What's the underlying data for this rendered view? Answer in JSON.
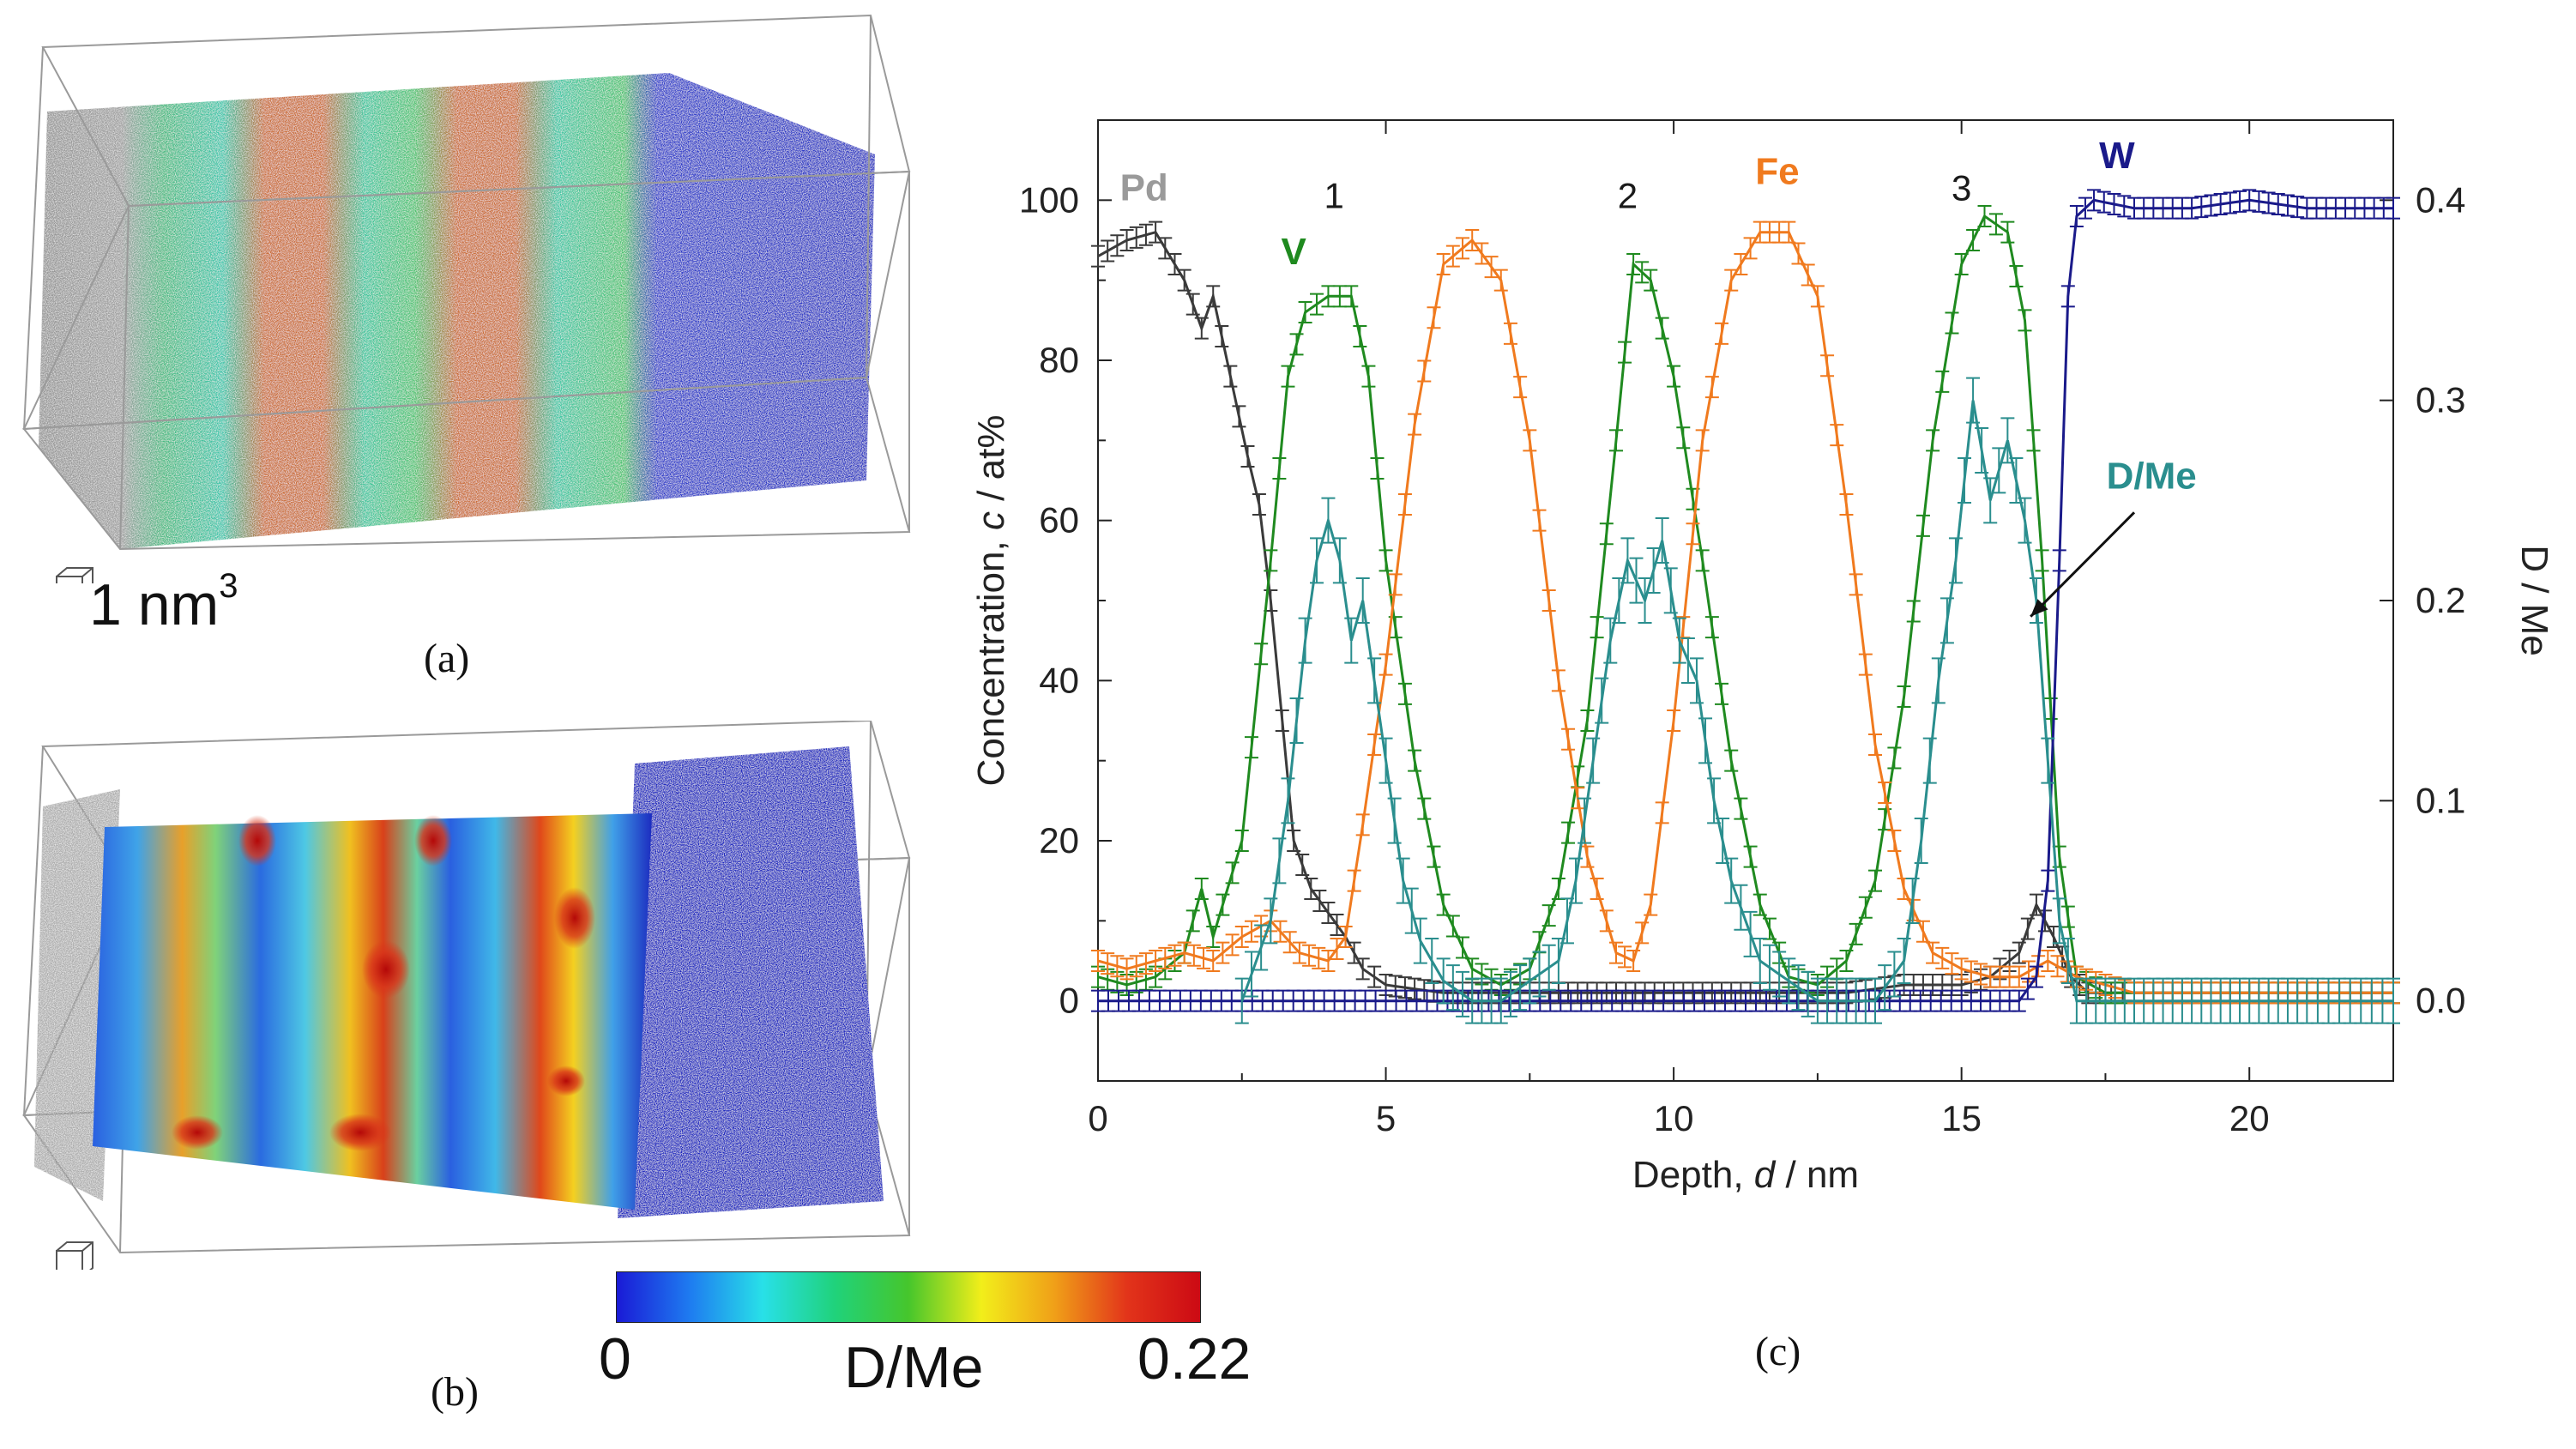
{
  "panels": {
    "a": {
      "caption": "(a)",
      "scale_label": "1 nm",
      "scale_exponent": "3"
    },
    "b": {
      "caption": "(b)"
    },
    "c": {
      "caption": "(c)"
    }
  },
  "colorbar": {
    "min_label": "0",
    "max_label": "0.22",
    "title": "D/Me",
    "stops": [
      "#1a1ad6",
      "#1e7bf0",
      "#28e0e8",
      "#20d27a",
      "#46c62c",
      "#f2ee1a",
      "#f0a018",
      "#e2341a",
      "#cc0a14"
    ]
  },
  "chart_data": {
    "type": "line",
    "xlabel_prefix": "Depth, ",
    "xlabel_var": "d",
    "xlabel_suffix": " / nm",
    "ylabel_prefix": "Concentration, ",
    "ylabel_var": "c",
    "ylabel_suffix": " / at%",
    "y2label": "D / Me",
    "xlim": [
      0,
      22.5
    ],
    "ylim": [
      -10,
      110
    ],
    "y2lim": [
      -0.04,
      0.44
    ],
    "xticks": [
      0,
      5,
      10,
      15,
      20
    ],
    "xtick_labels": [
      "0",
      "5",
      "10",
      "15",
      "20"
    ],
    "yticks": [
      0,
      20,
      40,
      60,
      80,
      100
    ],
    "ytick_labels": [
      "0",
      "20",
      "40",
      "60",
      "80",
      "100"
    ],
    "y2ticks": [
      0.0,
      0.1,
      0.2,
      0.3,
      0.4
    ],
    "y2tick_labels": [
      "0.0",
      "0.1",
      "0.2",
      "0.3",
      "0.4"
    ],
    "series": [
      {
        "name": "Pd",
        "axis": "left",
        "color": "#3a3a3a",
        "label_color": "#9a9a9a",
        "x": [
          0,
          0.5,
          1.0,
          1.5,
          1.8,
          2.0,
          2.3,
          2.6,
          2.8,
          3.0,
          3.2,
          3.4,
          3.7,
          4.0,
          4.3,
          4.6,
          5,
          6,
          7,
          8,
          9,
          10,
          11,
          12,
          13,
          14,
          15,
          15.5,
          16.0,
          16.3,
          16.6,
          16.9,
          17.2,
          18,
          19,
          20,
          21,
          22.5
        ],
        "y": [
          93,
          95,
          96,
          90,
          84,
          88,
          78,
          68,
          62,
          50,
          35,
          20,
          14,
          11,
          8,
          4,
          2,
          1,
          1,
          1,
          1,
          1,
          1,
          1,
          1,
          2,
          2,
          3,
          6,
          12,
          8,
          3,
          1,
          1,
          1,
          1,
          1,
          1
        ]
      },
      {
        "name": "V",
        "axis": "left",
        "color": "#1f8a1f",
        "label_color": "#1f8a1f",
        "x": [
          0,
          0.5,
          1.0,
          1.5,
          1.8,
          2.0,
          2.5,
          3.0,
          3.3,
          3.6,
          4.0,
          4.4,
          4.7,
          5.0,
          5.5,
          6,
          6.5,
          7,
          7.5,
          8,
          8.5,
          9,
          9.3,
          9.6,
          10,
          10.5,
          11,
          11.5,
          12,
          12.5,
          13,
          13.5,
          14,
          14.5,
          15,
          15.4,
          15.8,
          16.1,
          16.4,
          16.7,
          17.0,
          17.5,
          18,
          19,
          20,
          21,
          22.5
        ],
        "y": [
          3,
          2,
          3,
          6,
          14,
          8,
          20,
          55,
          78,
          86,
          88,
          88,
          78,
          55,
          30,
          12,
          4,
          2,
          4,
          14,
          35,
          70,
          92,
          90,
          78,
          55,
          30,
          12,
          3,
          2,
          5,
          15,
          38,
          70,
          92,
          98,
          96,
          85,
          55,
          18,
          3,
          1,
          1,
          1,
          1,
          1,
          1
        ]
      },
      {
        "name": "Fe",
        "axis": "left",
        "color": "#f07a1e",
        "label_color": "#f07a1e",
        "x": [
          0,
          0.5,
          1.0,
          1.5,
          2.0,
          2.5,
          3.0,
          3.5,
          4.0,
          4.3,
          4.6,
          5.0,
          5.5,
          6.0,
          6.5,
          7.0,
          7.5,
          8.0,
          8.5,
          9.0,
          9.3,
          9.6,
          10.0,
          10.5,
          11.0,
          11.5,
          12.0,
          12.5,
          13.0,
          13.5,
          14.0,
          14.5,
          15.0,
          15.5,
          16.0,
          16.5,
          17.0,
          18,
          19,
          20,
          21,
          22.5
        ],
        "y": [
          5,
          4,
          5,
          6,
          5,
          8,
          10,
          6,
          5,
          8,
          22,
          42,
          72,
          92,
          95,
          90,
          70,
          40,
          18,
          6,
          5,
          12,
          35,
          70,
          90,
          96,
          96,
          88,
          62,
          32,
          14,
          6,
          4,
          3,
          3,
          5,
          3,
          1,
          1,
          1,
          1,
          1
        ]
      },
      {
        "name": "W",
        "axis": "left",
        "color": "#1a1a8a",
        "label_color": "#1a1a8a",
        "x": [
          0,
          5,
          10,
          15,
          16.0,
          16.3,
          16.5,
          16.7,
          16.85,
          17.0,
          17.3,
          18,
          19,
          20,
          21,
          22,
          22.5
        ],
        "y": [
          0,
          0,
          0,
          0,
          0,
          3,
          15,
          55,
          88,
          98,
          100,
          99,
          99,
          100,
          99,
          99,
          99
        ]
      },
      {
        "name": "D/Me",
        "axis": "right",
        "color": "#2a8e8e",
        "label_color": "#2a8e8e",
        "x": [
          2.5,
          3.0,
          3.3,
          3.6,
          3.8,
          4.0,
          4.2,
          4.4,
          4.6,
          4.8,
          5.0,
          5.3,
          5.6,
          6.0,
          6.5,
          7.0,
          7.5,
          8.0,
          8.3,
          8.6,
          8.9,
          9.2,
          9.5,
          9.8,
          10.1,
          10.4,
          10.7,
          11.0,
          11.5,
          12.0,
          12.5,
          13.0,
          13.5,
          14.0,
          14.3,
          14.6,
          14.9,
          15.2,
          15.5,
          15.8,
          16.1,
          16.3,
          16.5,
          16.7,
          17.0,
          17.5,
          18,
          19,
          20,
          21,
          22.5
        ],
        "y": [
          0.0,
          0.04,
          0.1,
          0.18,
          0.22,
          0.24,
          0.22,
          0.18,
          0.2,
          0.16,
          0.12,
          0.06,
          0.03,
          0.01,
          0.0,
          0.0,
          0.01,
          0.02,
          0.06,
          0.12,
          0.18,
          0.22,
          0.2,
          0.23,
          0.18,
          0.16,
          0.1,
          0.06,
          0.02,
          0.01,
          0.0,
          0.0,
          0.0,
          0.02,
          0.08,
          0.16,
          0.22,
          0.3,
          0.25,
          0.28,
          0.24,
          0.2,
          0.12,
          0.04,
          0.0,
          0.0,
          0.0,
          0.0,
          0.0,
          0.0,
          0.0
        ]
      }
    ],
    "annotations": [
      {
        "text": "1",
        "x": 4.1,
        "y": 99,
        "color": "#1a1a1a"
      },
      {
        "text": "2",
        "x": 9.2,
        "y": 99,
        "color": "#1a1a1a"
      },
      {
        "text": "3",
        "x": 15.0,
        "y": 100,
        "color": "#1a1a1a"
      }
    ],
    "series_labels": [
      {
        "series": "Pd",
        "text": "Pd",
        "x": 0.8,
        "y": 100
      },
      {
        "series": "V",
        "text": "V",
        "x": 3.4,
        "y": 92
      },
      {
        "series": "Fe",
        "text": "Fe",
        "x": 11.8,
        "y": 102
      },
      {
        "series": "W",
        "text": "W",
        "x": 17.7,
        "y": 104
      },
      {
        "series": "D/Me",
        "text": "D/Me",
        "x": 18.3,
        "y": 64
      }
    ],
    "arrow": {
      "from": [
        18.0,
        61
      ],
      "to": [
        16.2,
        48
      ]
    }
  }
}
